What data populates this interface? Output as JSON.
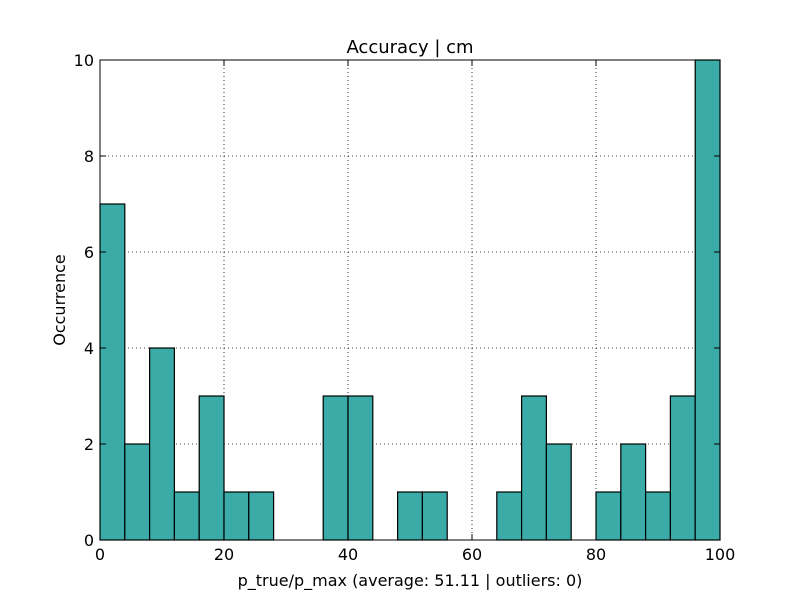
{
  "chart_data": {
    "type": "bar",
    "title": "Accuracy | cm",
    "xlabel": "p_true/p_max (average: 51.11 | outliers: 0)",
    "ylabel": "Occurrence",
    "xlim": [
      0,
      100
    ],
    "ylim": [
      0,
      10
    ],
    "xticks": [
      "0",
      "20",
      "40",
      "60",
      "80",
      "100"
    ],
    "yticks": [
      "0",
      "2",
      "4",
      "6",
      "8",
      "10"
    ],
    "grid": true,
    "bar_color": "#3aaba7",
    "bins": [
      {
        "start": 0,
        "end": 4,
        "value": 7
      },
      {
        "start": 4,
        "end": 8,
        "value": 2
      },
      {
        "start": 8,
        "end": 12,
        "value": 4
      },
      {
        "start": 12,
        "end": 16,
        "value": 1
      },
      {
        "start": 16,
        "end": 20,
        "value": 3
      },
      {
        "start": 20,
        "end": 24,
        "value": 1
      },
      {
        "start": 24,
        "end": 28,
        "value": 1
      },
      {
        "start": 28,
        "end": 32,
        "value": 0
      },
      {
        "start": 32,
        "end": 36,
        "value": 0
      },
      {
        "start": 36,
        "end": 40,
        "value": 3
      },
      {
        "start": 40,
        "end": 44,
        "value": 3
      },
      {
        "start": 44,
        "end": 48,
        "value": 0
      },
      {
        "start": 48,
        "end": 52,
        "value": 1
      },
      {
        "start": 52,
        "end": 56,
        "value": 1
      },
      {
        "start": 56,
        "end": 60,
        "value": 0
      },
      {
        "start": 60,
        "end": 64,
        "value": 0
      },
      {
        "start": 64,
        "end": 68,
        "value": 1
      },
      {
        "start": 68,
        "end": 72,
        "value": 3
      },
      {
        "start": 72,
        "end": 76,
        "value": 2
      },
      {
        "start": 76,
        "end": 80,
        "value": 0
      },
      {
        "start": 80,
        "end": 84,
        "value": 1
      },
      {
        "start": 84,
        "end": 88,
        "value": 2
      },
      {
        "start": 88,
        "end": 92,
        "value": 1
      },
      {
        "start": 92,
        "end": 96,
        "value": 3
      },
      {
        "start": 96,
        "end": 100,
        "value": 10
      }
    ]
  }
}
